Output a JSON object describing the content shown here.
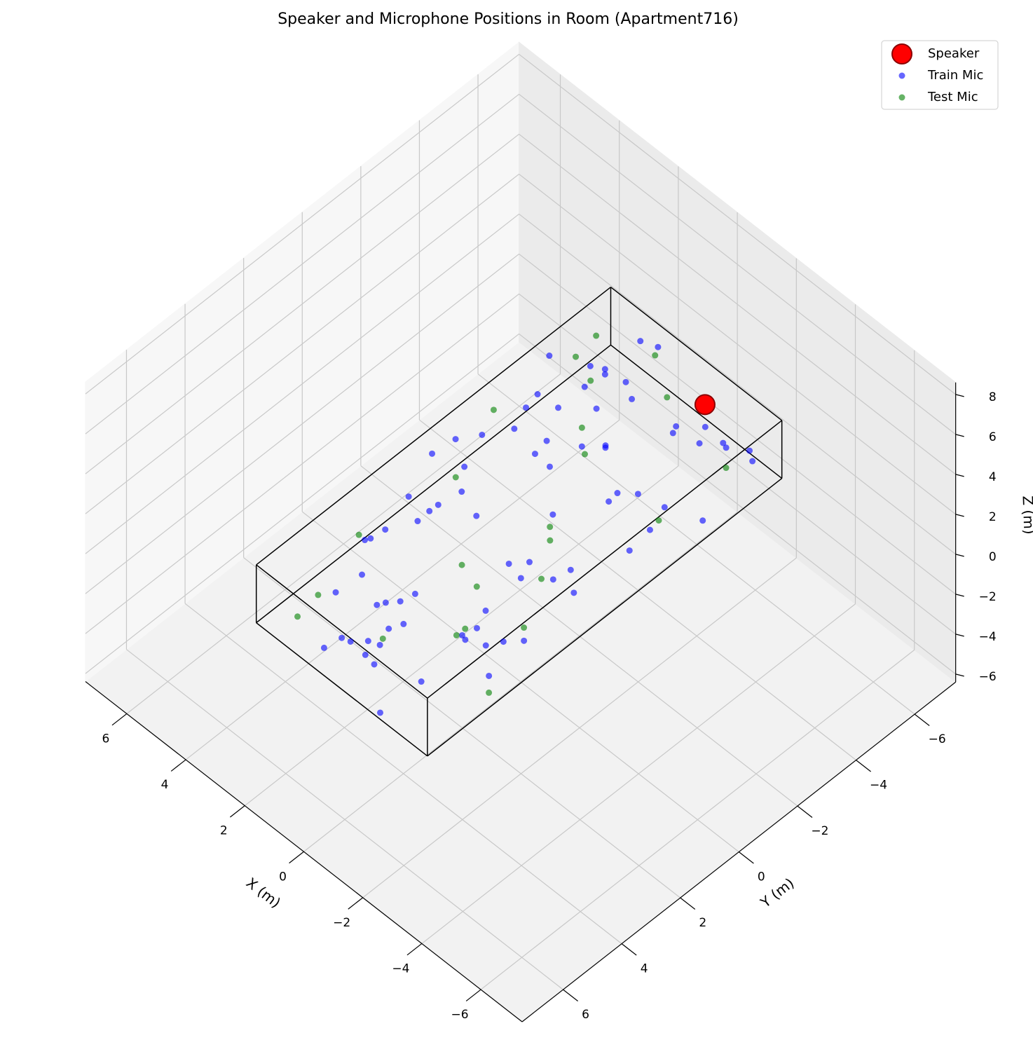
{
  "chart_data": {
    "type": "scatter3d",
    "title": "Speaker and Microphone Positions in Room (Apartment716)",
    "xlabel": "X (m)",
    "ylabel": "Y (m)",
    "zlabel": "Z (m)",
    "xlim": [
      -7.4,
      7.4
    ],
    "ylim": [
      -7.4,
      7.4
    ],
    "zlim": [
      -6.4,
      8.6
    ],
    "xticks": [
      {
        "value": -6,
        "label": "−6"
      },
      {
        "value": -4,
        "label": "−4"
      },
      {
        "value": -2,
        "label": "−2"
      },
      0,
      2,
      4,
      6
    ],
    "yticks": [
      {
        "value": -6,
        "label": "−6"
      },
      {
        "value": -4,
        "label": "−4"
      },
      {
        "value": -2,
        "label": "−2"
      },
      0,
      2,
      4,
      6
    ],
    "zticks": [
      {
        "value": -6,
        "label": "−6"
      },
      {
        "value": -4,
        "label": "−4"
      },
      {
        "value": -2,
        "label": "−2"
      },
      0,
      2,
      4,
      6,
      8
    ],
    "grid": true,
    "legend": "upper right",
    "room": {
      "x": [
        -2.8,
        3.0
      ],
      "y": [
        -6.1,
        6.0
      ],
      "z": [
        0,
        2.9
      ]
    },
    "series": [
      {
        "name": "Speaker",
        "color": "red",
        "edgecolor": "darkred",
        "x": [
          -0.76
        ],
        "y": [
          -5.53
        ],
        "z": [
          2.0
        ]
      },
      {
        "name": "Train Mic",
        "color": "blue",
        "x": [
          -2.1,
          1.4,
          0.3,
          -1.7,
          2.5,
          -0.6,
          0.9,
          2.8,
          -2.5,
          1.1,
          -0.2,
          2.2,
          -1.3,
          0.6,
          -2.7,
          1.8,
          -0.9,
          2.6,
          0.1,
          -1.5,
          1.6,
          -2.3,
          0.8,
          2.0,
          -0.4,
          -1.1,
          2.9,
          0.4,
          -2.0,
          1.3,
          -0.7,
          2.4,
          -1.8,
          0.0,
          1.9,
          -2.6,
          0.7,
          -1.0,
          2.7,
          -0.3,
          1.2,
          -2.2,
          0.5,
          2.1,
          -1.4,
          -0.1,
          2.3,
          -2.4,
          1.0,
          -0.8,
          1.7,
          -1.9,
          0.2,
          2.6,
          -1.2,
          0.9,
          -2.8,
          1.5,
          -0.5,
          2.0,
          -1.6,
          0.3,
          2.8,
          -2.0,
          1.1,
          -0.9,
          0.6,
          2.2,
          -1.3,
          -2.5,
          1.4,
          -0.2,
          2.5,
          -1.7,
          0.8,
          -0.6,
          1.9,
          -2.3,
          0.4,
          2.7
        ],
        "y": [
          -5.8,
          4.9,
          -3.2,
          1.7,
          -0.6,
          5.6,
          -4.5,
          2.3,
          -1.9,
          0.4,
          3.8,
          -5.1,
          -2.7,
          5.2,
          0.9,
          -4.0,
          2.9,
          -3.6,
          4.4,
          -0.2,
          1.2,
          -5.5,
          3.3,
          -2.2,
          -4.8,
          5.9,
          0.1,
          -1.4,
          2.6,
          -3.9,
          4.7,
          -5.3,
          0.7,
          -2.9,
          3.5,
          -1.1,
          5.4,
          -4.3,
          1.9,
          -0.8,
          -5.9,
          2.1,
          4.1,
          -3.4,
          -1.6,
          0.5,
          3.0,
          -4.6,
          5.7,
          -2.5,
          1.4,
          -5.0,
          4.6,
          -0.4,
          2.4,
          -3.0,
          3.9,
          -5.6,
          0.2,
          -1.8,
          5.0,
          -4.1,
          1.0,
          3.2,
          -2.0,
          -5.2,
          4.3,
          -0.9,
          2.8,
          -3.7,
          0.6,
          5.5,
          -4.9,
          3.6,
          -1.3,
          -5.7,
          1.6,
          -2.6,
          4.8,
          -3.3
        ],
        "z": [
          0.4,
          2.1,
          1.3,
          2.7,
          0.8,
          1.6,
          2.4,
          0.2,
          1.9,
          1.1,
          2.6,
          0.6,
          1.4,
          0.9,
          2.2,
          1.7,
          0.3,
          2.8,
          1.2,
          0.7,
          2.0,
          1.5,
          0.5,
          2.5,
          1.0,
          0.1,
          1.8,
          2.3,
          0.9,
          1.3,
          2.7,
          0.4,
          1.6,
          2.1,
          0.8,
          1.9,
          1.2,
          2.6,
          0.3,
          1.4,
          2.2,
          0.6,
          1.7,
          1.0,
          2.4,
          0.2,
          1.5,
          2.8,
          0.7,
          1.1,
          1.8,
          2.0,
          0.5,
          2.3,
          1.3,
          0.9,
          1.6,
          2.5,
          0.4,
          1.9,
          1.2,
          2.7,
          0.8,
          1.4,
          2.1,
          0.6,
          1.7,
          2.4,
          1.0,
          0.3,
          2.2,
          1.5,
          0.9,
          1.8,
          2.6,
          0.5,
          1.3,
          2.0,
          0.7,
          1.1
        ]
      },
      {
        "name": "Test Mic",
        "color": "green",
        "x": [
          -1.2,
          2.3,
          0.5,
          -2.4,
          1.6,
          -0.3,
          2.8,
          -1.8,
          0.9,
          -0.7,
          1.9,
          -2.1,
          0.2,
          2.5,
          -1.5,
          1.2,
          -2.6,
          0.7,
          2.0,
          -0.9,
          1.4,
          -2.0,
          0.0,
          2.6
        ],
        "y": [
          3.1,
          -4.2,
          1.5,
          -2.3,
          5.3,
          -0.7,
          -5.4,
          4.0,
          -3.1,
          2.2,
          0.3,
          -4.9,
          4.5,
          -1.6,
          0.8,
          -5.8,
          3.7,
          -2.8,
          5.6,
          -0.1,
          -3.8,
          1.9,
          -5.0,
          2.9
        ],
        "z": [
          1.2,
          2.4,
          0.6,
          1.8,
          2.2,
          0.9,
          1.5,
          2.6,
          0.4,
          1.7,
          2.0,
          1.1,
          0.7,
          2.5,
          1.4,
          1.9,
          0.3,
          2.3,
          1.0,
          1.6,
          2.7,
          0.8,
          2.1,
          1.3
        ]
      }
    ]
  }
}
